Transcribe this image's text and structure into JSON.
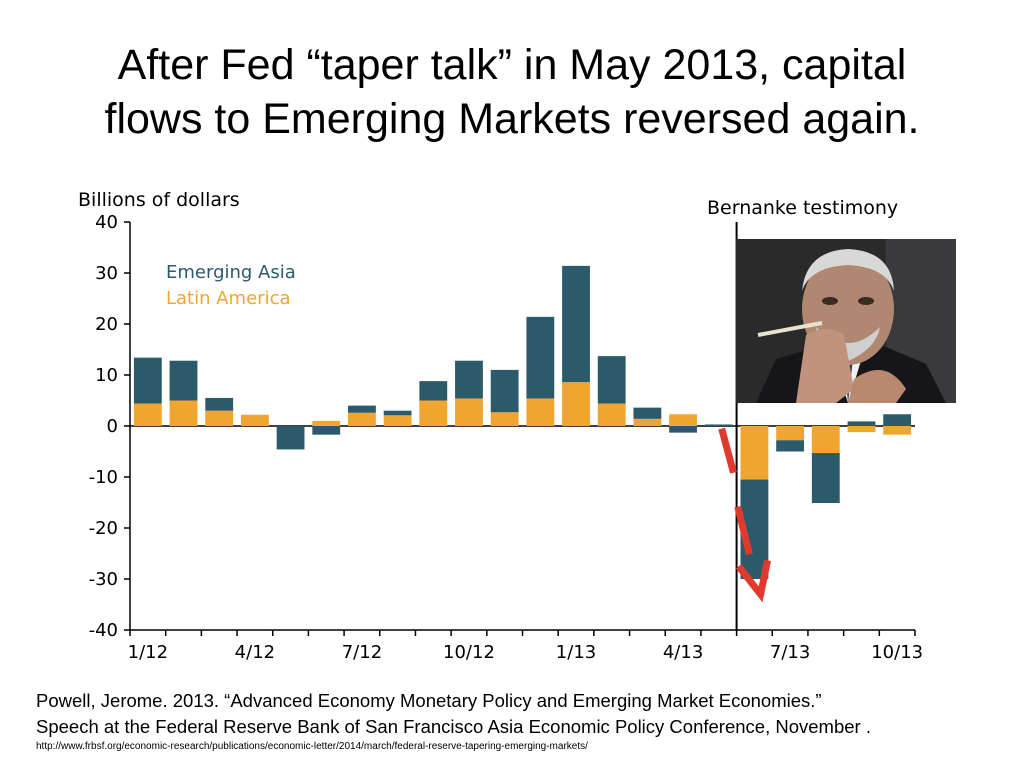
{
  "slide": {
    "title_line1": "After Fed “taper talk” in May 2013, capital",
    "title_line2": "flows to Emerging Markets reversed again.",
    "citation_line1": "Powell, Jerome. 2013. “Advanced Economy Monetary Policy and Emerging Market Economies.”",
    "citation_line2": "Speech at the Federal Reserve Bank of San Francisco Asia Economic Policy Conference, November .",
    "citation_url": "http://www.frbsf.org/economic-research/publications/economic-letter/2014/march/federal-reserve-tapering-emerging-markets/"
  },
  "chart_data": {
    "type": "bar",
    "stacked": true,
    "ylabel": "Billions of dollars",
    "ylim": [
      -40,
      40
    ],
    "yticks": [
      40,
      30,
      20,
      10,
      0,
      -10,
      -20,
      -30,
      -40
    ],
    "months": [
      "1/12",
      "2/12",
      "3/12",
      "4/12",
      "5/12",
      "6/12",
      "7/12",
      "8/12",
      "9/12",
      "10/12",
      "11/12",
      "12/12",
      "1/13",
      "2/13",
      "3/13",
      "4/13",
      "5/13",
      "6/13",
      "7/13",
      "8/13",
      "9/13",
      "10/13"
    ],
    "xtick_labels": [
      "1/12",
      "4/12",
      "7/12",
      "10/12",
      "1/13",
      "4/13",
      "7/13",
      "10/13"
    ],
    "xtick_months": [
      0,
      3,
      6,
      9,
      12,
      15,
      18,
      21
    ],
    "series": [
      {
        "name": "Emerging Asia",
        "color": "#2b5a6b",
        "values": [
          9,
          7.8,
          2.5,
          0,
          -4.6,
          -1.7,
          1.4,
          0.9,
          3.8,
          7.4,
          8.3,
          16,
          22.8,
          9.3,
          2.2,
          -1.3,
          0.3,
          -19.5,
          -2.2,
          -9.8,
          0.9,
          2.3
        ]
      },
      {
        "name": "Latin America",
        "color": "#f0a530",
        "values": [
          4.4,
          5,
          3,
          2.2,
          0,
          1,
          2.6,
          2.1,
          5,
          5.4,
          2.7,
          5.4,
          8.6,
          4.4,
          1.4,
          2.3,
          0,
          -10.5,
          -2.8,
          -5.3,
          -1.2,
          -1.7
        ]
      }
    ],
    "annotation": {
      "text": "Bernanke testimony",
      "after_month": "5/13"
    }
  },
  "photo": {
    "subject": "man-resting-chin-on-hand-photo",
    "colors": {
      "background": "#2a2a2a",
      "skin": "#b08770",
      "hair": "#d8d8d8",
      "suit": "#15151a"
    }
  },
  "arrow": {
    "color": "#e03a2e"
  }
}
